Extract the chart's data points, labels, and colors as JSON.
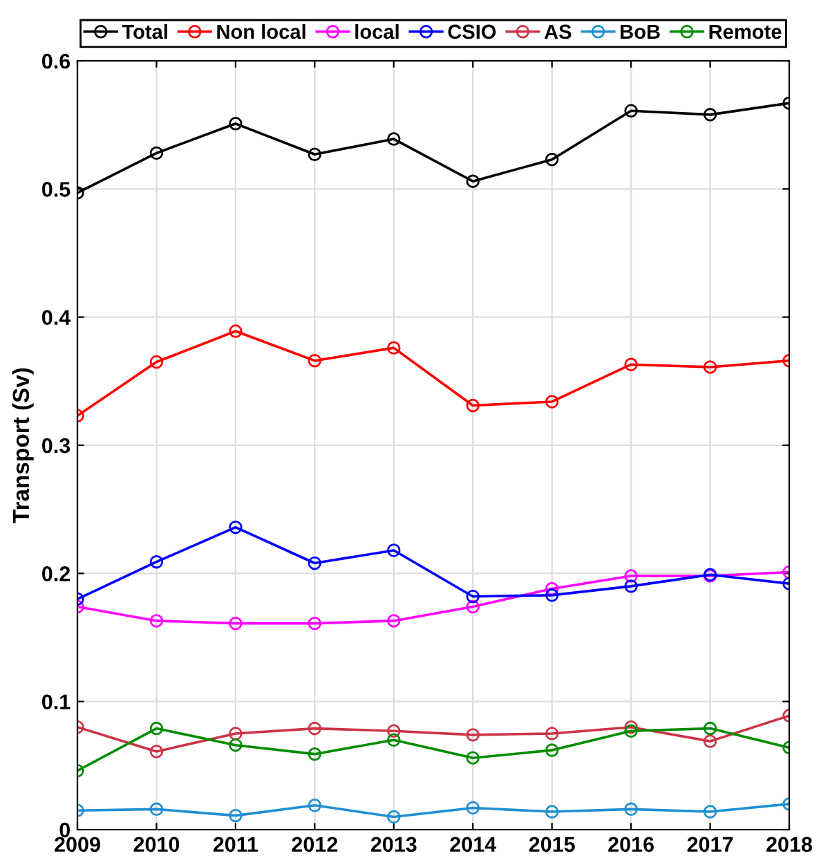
{
  "chart_data": {
    "type": "line",
    "ylabel": "Transport (Sv)",
    "x": [
      2009,
      2010,
      2011,
      2012,
      2013,
      2014,
      2015,
      2016,
      2017,
      2018
    ],
    "xlim": [
      2009,
      2018
    ],
    "xticks": [
      2009,
      2010,
      2011,
      2012,
      2013,
      2014,
      2015,
      2016,
      2017,
      2018
    ],
    "ylim": [
      0,
      0.6
    ],
    "yticks": [
      0,
      0.1,
      0.2,
      0.3,
      0.4,
      0.5,
      0.6
    ],
    "grid": true,
    "legend": "top",
    "marker": "circle",
    "line_style": "solid",
    "series": [
      {
        "name": "Total",
        "color": "#000000",
        "values": [
          0.497,
          0.528,
          0.551,
          0.527,
          0.539,
          0.506,
          0.523,
          0.561,
          0.558,
          0.567
        ]
      },
      {
        "name": "Non local",
        "color": "#ff0000",
        "values": [
          0.323,
          0.365,
          0.389,
          0.366,
          0.376,
          0.331,
          0.334,
          0.363,
          0.361,
          0.366
        ]
      },
      {
        "name": "local",
        "color": "#ff00ff",
        "values": [
          0.174,
          0.163,
          0.161,
          0.161,
          0.163,
          0.174,
          0.188,
          0.198,
          0.198,
          0.201
        ]
      },
      {
        "name": "CSIO",
        "color": "#0000ff",
        "values": [
          0.18,
          0.209,
          0.236,
          0.208,
          0.218,
          0.182,
          0.183,
          0.19,
          0.199,
          0.192
        ]
      },
      {
        "name": "AS",
        "color": "#cc3346",
        "values": [
          0.08,
          0.061,
          0.075,
          0.079,
          0.077,
          0.074,
          0.075,
          0.08,
          0.069,
          0.089
        ]
      },
      {
        "name": "BoB",
        "color": "#1f8fd2",
        "values": [
          0.015,
          0.016,
          0.011,
          0.019,
          0.01,
          0.017,
          0.014,
          0.016,
          0.014,
          0.02
        ]
      },
      {
        "name": "Remote",
        "color": "#008c00",
        "values": [
          0.046,
          0.079,
          0.066,
          0.059,
          0.07,
          0.056,
          0.062,
          0.077,
          0.079,
          0.064
        ]
      }
    ]
  }
}
